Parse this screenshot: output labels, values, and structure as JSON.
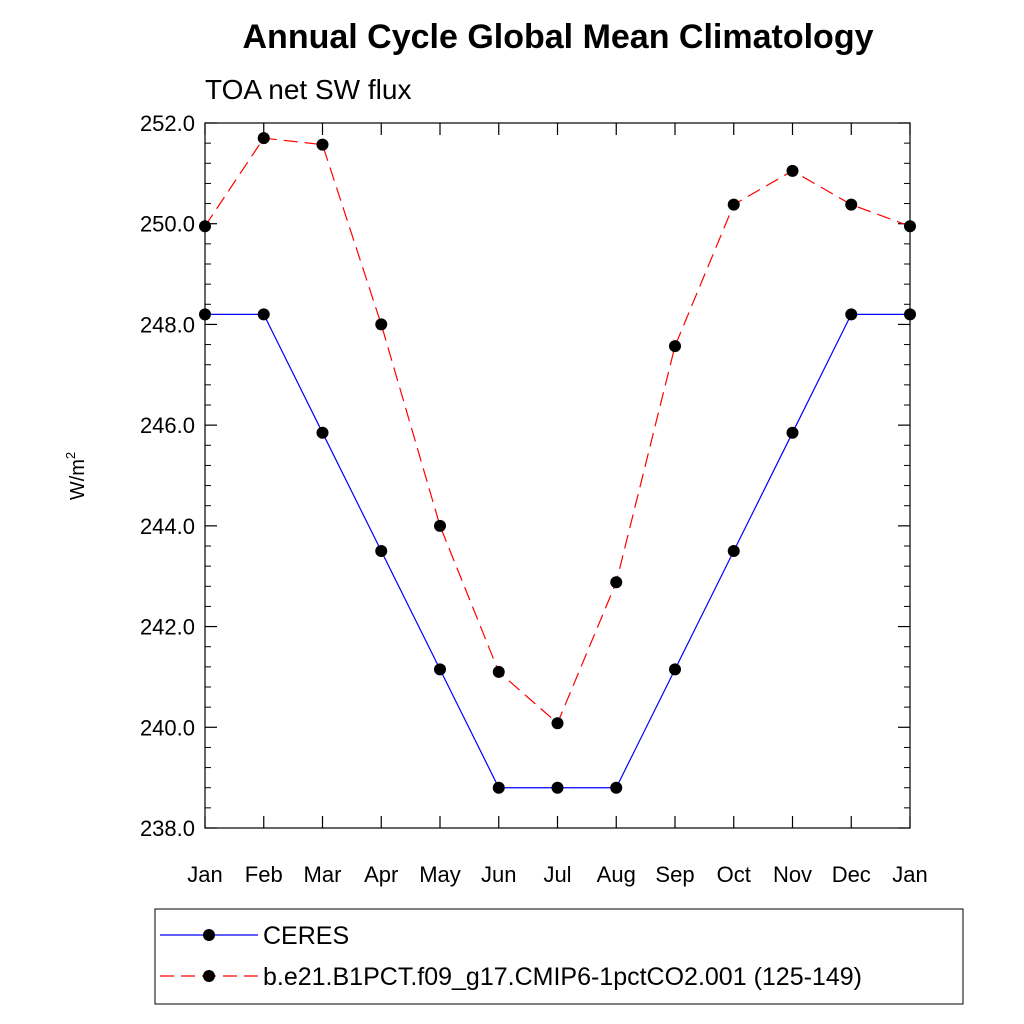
{
  "chart_data": {
    "type": "line",
    "title": "Annual Cycle Global Mean Climatology",
    "subtitle": "TOA net SW flux",
    "ylabel": "W/m",
    "ylabel_superscript": "2",
    "ylim": [
      238.0,
      252.0
    ],
    "yticks": [
      "238.0",
      "240.0",
      "242.0",
      "244.0",
      "246.0",
      "248.0",
      "250.0",
      "252.0"
    ],
    "categories": [
      "Jan",
      "Feb",
      "Mar",
      "Apr",
      "May",
      "Jun",
      "Jul",
      "Aug",
      "Sep",
      "Oct",
      "Nov",
      "Dec",
      "Jan"
    ],
    "series": [
      {
        "name": "CERES",
        "color": "#0000ff",
        "dash": "solid",
        "values": [
          248.2,
          248.2,
          245.85,
          243.5,
          241.15,
          238.8,
          238.8,
          238.8,
          241.15,
          243.5,
          245.85,
          248.2,
          248.2
        ]
      },
      {
        "name": "b.e21.B1PCT.f09_g17.CMIP6-1pctCO2.001 (125-149)",
        "color": "#ff0000",
        "dash": "dashed",
        "values": [
          249.95,
          251.7,
          251.57,
          248.0,
          244.0,
          241.1,
          240.08,
          242.88,
          247.57,
          250.38,
          251.05,
          250.38,
          249.95
        ]
      }
    ],
    "legend_position": "bottom"
  }
}
